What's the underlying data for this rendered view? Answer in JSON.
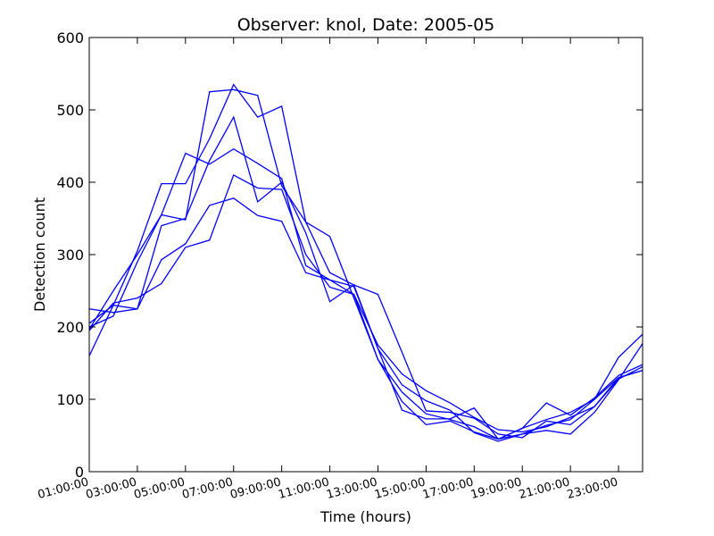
{
  "chart_data": {
    "type": "line",
    "title": "Observer: knol, Date: 2005-05",
    "xlabel": "Time (hours)",
    "ylabel": "Detection count",
    "xlim": [
      1,
      24
    ],
    "ylim": [
      0,
      600
    ],
    "grid": false,
    "line_color": "#0000ff",
    "x_tick_values": [
      1,
      3,
      5,
      7,
      9,
      11,
      13,
      15,
      17,
      19,
      21,
      23
    ],
    "x_tick_labels": [
      "01:00:00",
      "03:00:00",
      "05:00:00",
      "07:00:00",
      "09:00:00",
      "11:00:00",
      "13:00:00",
      "15:00:00",
      "17:00:00",
      "19:00:00",
      "21:00:00",
      "23:00:00"
    ],
    "y_tick_values": [
      0,
      100,
      200,
      300,
      400,
      500,
      600
    ],
    "y_tick_labels": [
      "0",
      "100",
      "200",
      "300",
      "400",
      "500",
      "600"
    ],
    "x": [
      1,
      2,
      3,
      4,
      5,
      6,
      7,
      8,
      9,
      10,
      11,
      12,
      13,
      14,
      15,
      16,
      17,
      18,
      19,
      20,
      21,
      22,
      23,
      24
    ],
    "series": [
      {
        "values": [
          160,
          230,
          305,
          398,
          398,
          460,
          535,
          490,
          505,
          345,
          275,
          258,
          245,
          165,
          84,
          82,
          74,
          52,
          47,
          70,
          65,
          90,
          130,
          140
        ]
      },
      {
        "values": [
          200,
          215,
          290,
          355,
          348,
          525,
          528,
          520,
          395,
          345,
          325,
          240,
          155,
          97,
          65,
          70,
          55,
          45,
          60,
          72,
          82,
          100,
          158,
          190
        ]
      },
      {
        "values": [
          225,
          220,
          225,
          340,
          350,
          430,
          490,
          373,
          400,
          330,
          235,
          258,
          170,
          85,
          73,
          73,
          88,
          45,
          60,
          95,
          78,
          102,
          133,
          148
        ]
      },
      {
        "values": [
          197,
          250,
          300,
          355,
          440,
          425,
          446,
          426,
          405,
          285,
          265,
          245,
          175,
          135,
          112,
          95,
          75,
          58,
          55,
          62,
          75,
          90,
          128,
          145
        ]
      },
      {
        "values": [
          195,
          233,
          240,
          260,
          310,
          320,
          410,
          392,
          390,
          300,
          255,
          245,
          155,
          110,
          80,
          72,
          62,
          45,
          52,
          64,
          72,
          100,
          130,
          140
        ]
      },
      {
        "values": [
          205,
          230,
          225,
          293,
          315,
          368,
          378,
          354,
          346,
          275,
          265,
          256,
          170,
          120,
          98,
          85,
          54,
          42,
          52,
          57,
          52,
          82,
          127,
          177
        ]
      }
    ]
  }
}
